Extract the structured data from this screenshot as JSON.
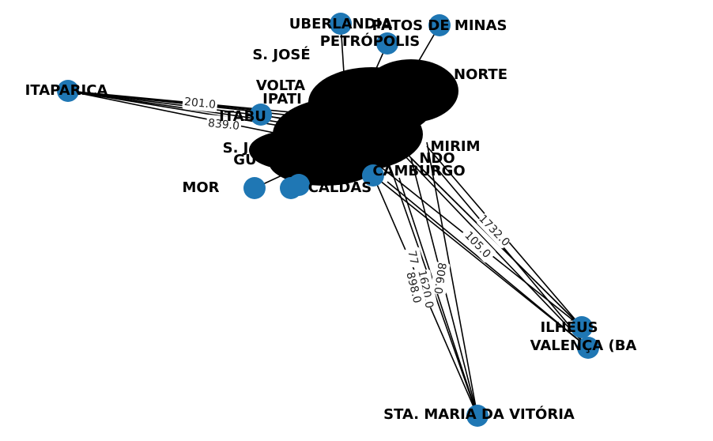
{
  "colors": {
    "node": "#1f77b4",
    "edge": "#000000",
    "background": "#ffffff"
  },
  "nodes": [
    "UBERLANDIA",
    "PATOS DE MINAS",
    "PETRÓPOLIS",
    "S. JOSÉ",
    "NORTE",
    "ITAPARICA",
    "VOLTA",
    "IPATI",
    "ITABU",
    "S. J",
    "GU",
    "CAMBURGO",
    "MIRIM",
    "NDO",
    "CALDAS",
    "MOR",
    "ILHÉUS",
    "VALENÇA (BA",
    "STA. MARIA DA VITÓRIA"
  ],
  "edge_labels": [
    "201.0",
    "839.0",
    "105.0",
    "1732.0",
    "806.0",
    "1620.0",
    "77",
    "898.0"
  ]
}
